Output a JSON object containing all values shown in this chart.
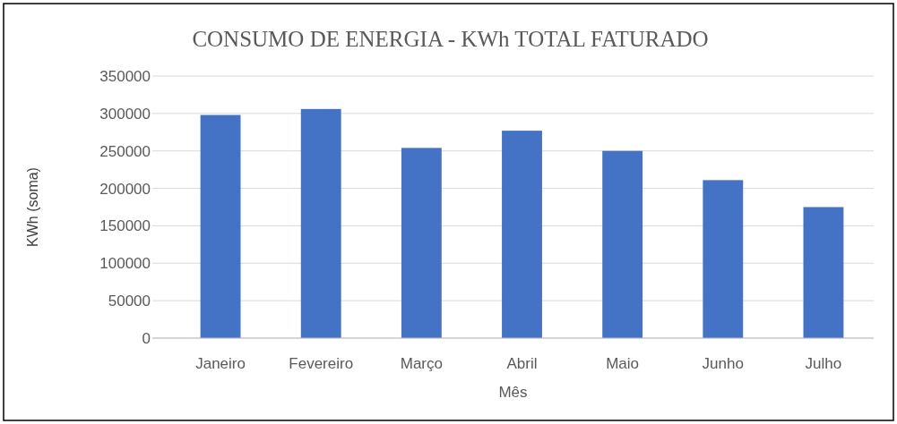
{
  "chart_data": {
    "type": "bar",
    "title": "CONSUMO DE ENERGIA - KWh TOTAL FATURADO",
    "xlabel": "Mês",
    "ylabel": "KWh (soma)",
    "categories": [
      "Janeiro",
      "Fevereiro",
      "Março",
      "Abril",
      "Maio",
      "Junho",
      "Julho"
    ],
    "values": [
      298000,
      306000,
      254000,
      277000,
      250000,
      211000,
      175000
    ],
    "color": "#4472c4",
    "ylim": [
      0,
      350000
    ],
    "yticks": [
      0,
      50000,
      100000,
      150000,
      200000,
      250000,
      300000,
      350000
    ],
    "grid": "y"
  }
}
